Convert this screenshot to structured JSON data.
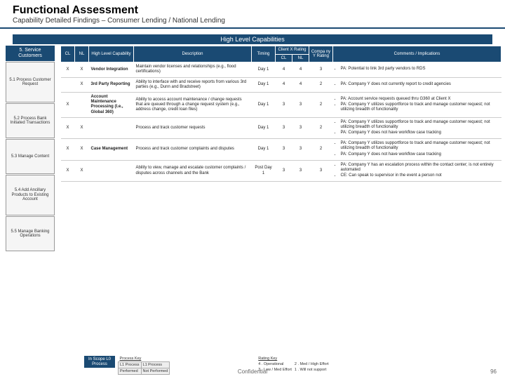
{
  "colors": {
    "primary": "#1a4a73",
    "text": "#222222",
    "grid": "#cccccc",
    "bg": "#ffffff"
  },
  "fonts": {
    "title_pt": 16,
    "subtitle_pt": 10,
    "cell_pt": 6
  },
  "title": "Functional Assessment",
  "subtitle": "Capability Detailed Findings – Consumer Lending / National Lending",
  "banner": "High Level Capabilities",
  "side": {
    "category": "5. Service Customers",
    "steps": [
      "5.1 Process Customer Request",
      "5.2 Process Bank Initiated Transactions",
      "5.3 Manage Content",
      "5.4 Add Ancillary Products to Existing Account",
      "5.5 Manage Banking Operations"
    ]
  },
  "headers": {
    "cl": "CL",
    "nl": "NL",
    "capability": "High Level Capability",
    "description": "Description",
    "timing": "Timing",
    "clientx": "Client X Rating",
    "compy": "Compa ny Y Rating",
    "cl2": "CL",
    "nl2": "NL",
    "comments": "Comments / Implications"
  },
  "rows": [
    {
      "cl": "X",
      "nl": "X",
      "cap": "Vendor Integration",
      "desc": "Maintain vendor licenses and relationships (e.g., flood certifications)",
      "timing": "Day 1",
      "rcl": "4",
      "rnl": "4",
      "cy": "3",
      "impl": [
        "PA: Potential to link 3rd party vendors to RDS"
      ]
    },
    {
      "cl": "",
      "nl": "X",
      "cap": "3rd Party Reporting",
      "desc": "Ability to interface with and receive reports from various 3rd parties (e.g., Dunn and Bradstreet)",
      "timing": "Day 1",
      "rcl": "4",
      "rnl": "4",
      "cy": "2",
      "impl": [
        "PA: Company Y does not currently report to credit agencies"
      ]
    },
    {
      "cl": "X",
      "nl": "",
      "cap": "Account Maintenance Processing (I.e., Global 360)",
      "desc": "Ability to access account maintenance / change requests that are queued through a change request system (e.g., address change, credit loan files)",
      "timing": "Day 1",
      "rcl": "3",
      "rnl": "3",
      "cy": "2",
      "impl": [
        "PA: Account service requests queued thru G360 at Client X",
        "PA: Company Y utilizes supportforce to track and manage customer request; not utilizing breadth of functionality"
      ]
    },
    {
      "cl": "X",
      "nl": "X",
      "cap": "",
      "desc": "Process and track customer requests",
      "timing": "Day 1",
      "rcl": "3",
      "rnl": "3",
      "cy": "2",
      "impl": [
        "PA: Company Y utilizes supportforce to track and manage customer request; not utilizing breadth of functionality",
        "PA: Company Y does not have workflow case tracking"
      ]
    },
    {
      "cl": "X",
      "nl": "X",
      "cap": "Case Management",
      "desc": "Process and track customer complaints and disputes",
      "timing": "Day 1",
      "rcl": "3",
      "rnl": "3",
      "cy": "2",
      "impl": [
        "PA: Company Y utilizes supportforce to track and manage customer request; not utilizing breadth of functionality",
        "PA: Company Y does not have workflow case tracking"
      ]
    },
    {
      "cl": "X",
      "nl": "X",
      "cap": "",
      "desc": "Ability to view, manage and escalate customer complaints / disputes across channels and the Bank",
      "timing": "Post Day 1",
      "rcl": "3",
      "rnl": "3",
      "cy": "3",
      "impl": [
        "PA: Company Y has an escalation process within the contact center; is not entirely automated",
        "CE: Can speak to supervisor in the event a person not"
      ]
    }
  ],
  "legend": {
    "boxlabel1": "In Scope L0 Process",
    "pkey": "Process Key",
    "performed": "Performed",
    "l1proc": "L1 Process",
    "notperf": "Not Performed",
    "rkey": "Rating Key",
    "r4": "4 . Operational",
    "r2": "2 . Med / High Effort",
    "r3": "3 . Low / Med Effort",
    "r1": "1 . Will not support"
  },
  "footer": {
    "confidential": "Confidential",
    "page": "96"
  }
}
